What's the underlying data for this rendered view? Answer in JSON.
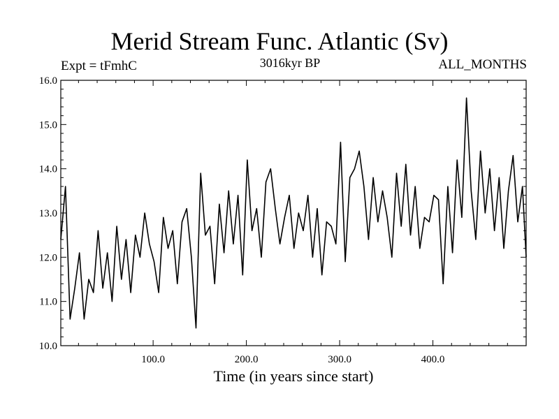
{
  "chart_data": {
    "type": "line",
    "title": "Merid Stream Func. Atlantic (Sv)",
    "subtitle_left": "Expt = tFmhC",
    "subtitle_center": "3016kyr BP",
    "subtitle_right": "ALL_MONTHS",
    "xlabel": "Time (in years since start)",
    "ylabel": "",
    "xlim": [
      1,
      500
    ],
    "ylim": [
      10.0,
      16.0
    ],
    "x_ticks": [
      100,
      200,
      300,
      400
    ],
    "x_tick_labels": [
      "100.0",
      "200.0",
      "300.0",
      "400.0"
    ],
    "y_ticks": [
      10,
      11,
      12,
      13,
      14,
      15,
      16
    ],
    "y_tick_labels": [
      "10.0",
      "11.0",
      "12.0",
      "13.0",
      "14.0",
      "15.0",
      "16.0"
    ],
    "grid": false,
    "series": [
      {
        "name": "Merid Stream Func. Atlantic",
        "x": [
          1,
          6,
          11,
          16,
          21,
          26,
          31,
          36,
          41,
          46,
          51,
          56,
          61,
          66,
          71,
          76,
          81,
          86,
          91,
          96,
          101,
          106,
          111,
          116,
          121,
          126,
          131,
          136,
          141,
          146,
          151,
          156,
          161,
          166,
          171,
          176,
          181,
          186,
          191,
          196,
          201,
          206,
          211,
          216,
          221,
          226,
          231,
          236,
          241,
          246,
          251,
          256,
          261,
          266,
          271,
          276,
          281,
          286,
          291,
          296,
          301,
          306,
          311,
          316,
          321,
          326,
          331,
          336,
          341,
          346,
          351,
          356,
          361,
          366,
          371,
          376,
          381,
          386,
          391,
          396,
          401,
          406,
          411,
          416,
          421,
          426,
          431,
          436,
          441,
          446,
          451,
          456,
          461,
          466,
          471,
          476,
          481,
          486,
          491,
          496,
          500
        ],
        "values": [
          12.4,
          13.6,
          10.6,
          11.3,
          12.1,
          10.6,
          11.5,
          11.2,
          12.6,
          11.3,
          12.1,
          11.0,
          12.7,
          11.5,
          12.4,
          11.2,
          12.5,
          12.0,
          13.0,
          12.3,
          11.9,
          11.2,
          12.9,
          12.2,
          12.6,
          11.4,
          12.8,
          13.1,
          12.0,
          10.4,
          13.9,
          12.5,
          12.7,
          11.4,
          13.2,
          12.1,
          13.5,
          12.3,
          13.4,
          11.6,
          14.2,
          12.6,
          13.1,
          12.0,
          13.7,
          14.0,
          13.1,
          12.3,
          12.9,
          13.4,
          12.2,
          13.0,
          12.6,
          13.4,
          12.0,
          13.1,
          11.6,
          12.8,
          12.7,
          12.3,
          14.6,
          11.9,
          13.8,
          14.0,
          14.4,
          13.6,
          12.4,
          13.8,
          12.8,
          13.5,
          12.9,
          12.0,
          13.9,
          12.7,
          14.1,
          12.5,
          13.6,
          12.2,
          12.9,
          12.8,
          13.4,
          13.3,
          11.4,
          13.6,
          12.1,
          14.2,
          12.9,
          15.6,
          13.5,
          12.4,
          14.4,
          13.0,
          14.0,
          12.6,
          13.8,
          12.2,
          13.5,
          14.3,
          12.8,
          13.6,
          12.0
        ]
      }
    ]
  }
}
